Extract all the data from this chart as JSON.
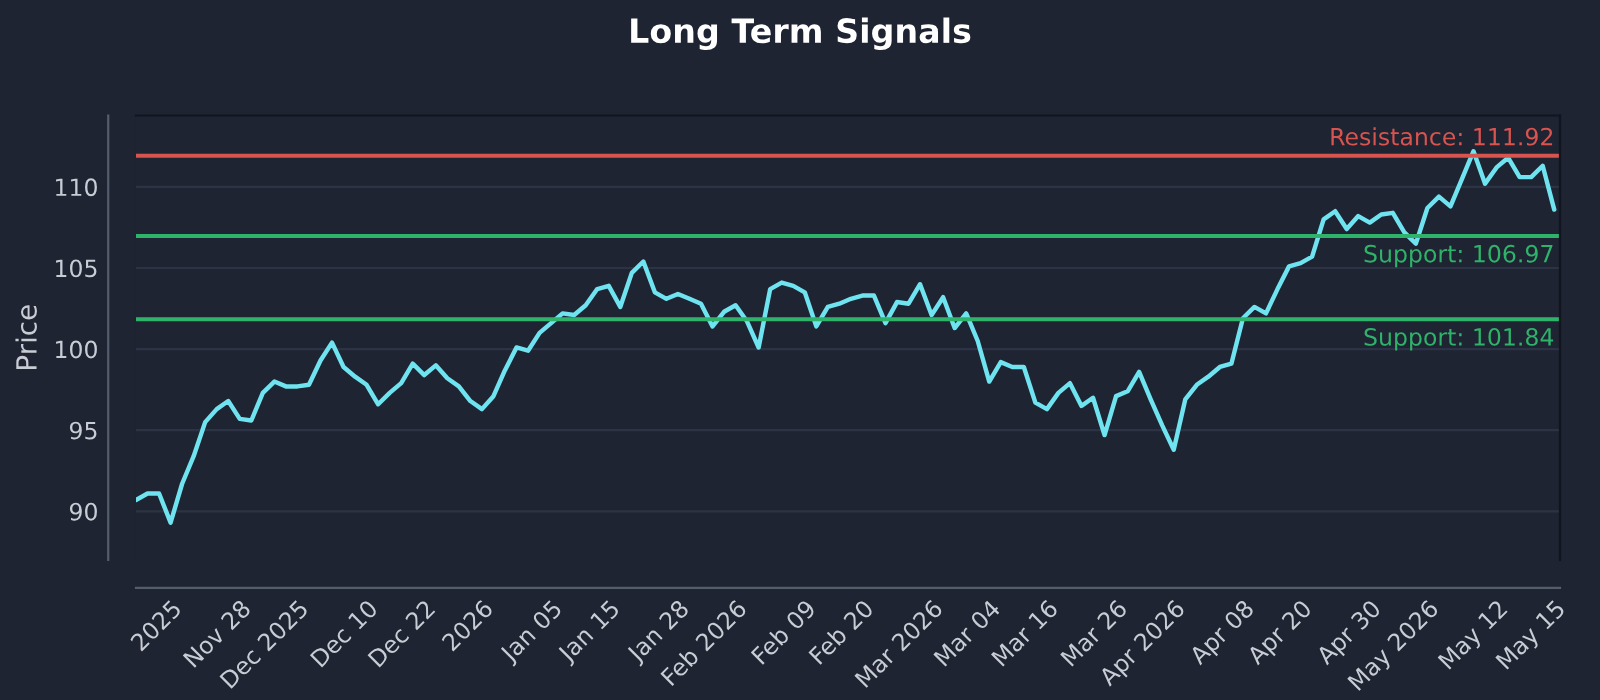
{
  "chart_data": {
    "type": "line",
    "title": "Long Term Signals",
    "ylabel": "Price",
    "categories": [
      null,
      null,
      null,
      "2025",
      null,
      null,
      null,
      null,
      null,
      "Nov 28",
      null,
      null,
      null,
      null,
      "Dec 2025",
      null,
      null,
      null,
      null,
      null,
      "Dec 10",
      null,
      null,
      null,
      null,
      "Dec 22",
      null,
      null,
      null,
      null,
      "2026",
      null,
      null,
      null,
      null,
      null,
      "Jan 05",
      null,
      null,
      null,
      null,
      "Jan 15",
      null,
      null,
      null,
      null,
      null,
      "Jan 28",
      null,
      null,
      null,
      null,
      "Feb 2026",
      null,
      null,
      null,
      null,
      null,
      "Feb 09",
      null,
      null,
      null,
      null,
      "Feb 20",
      null,
      null,
      null,
      null,
      null,
      "Mar 2026",
      null,
      null,
      null,
      null,
      "Mar 04",
      null,
      null,
      null,
      null,
      "Mar 16",
      null,
      null,
      null,
      null,
      null,
      "Mar 26",
      null,
      null,
      null,
      null,
      "Apr 2026",
      null,
      null,
      null,
      null,
      null,
      "Apr 08",
      null,
      null,
      null,
      null,
      "Apr 20",
      null,
      null,
      null,
      null,
      null,
      "Apr 30",
      null,
      null,
      null,
      null,
      "May 2026",
      null,
      null,
      null,
      null,
      null,
      "May 12",
      null,
      null,
      null,
      null,
      "May 15"
    ],
    "series": [
      {
        "color": "#6fe3ef",
        "values": [
          90.7,
          91.1,
          91.1,
          89.3,
          91.7,
          93.4,
          95.5,
          96.3,
          96.8,
          95.7,
          95.6,
          97.3,
          98.0,
          97.7,
          97.7,
          97.8,
          99.3,
          100.4,
          98.9,
          98.3,
          97.8,
          96.6,
          97.3,
          97.9,
          99.1,
          98.4,
          99.0,
          98.2,
          97.7,
          96.8,
          96.3,
          97.1,
          98.7,
          100.1,
          99.9,
          101.0,
          101.6,
          102.2,
          102.1,
          102.7,
          103.7,
          103.9,
          102.6,
          104.7,
          105.4,
          103.5,
          103.1,
          103.4,
          103.1,
          102.8,
          101.4,
          102.3,
          102.7,
          101.7,
          100.1,
          103.7,
          104.1,
          103.9,
          103.5,
          101.4,
          102.6,
          102.8,
          103.1,
          103.3,
          103.3,
          101.6,
          102.9,
          102.8,
          104.0,
          102.1,
          103.2,
          101.3,
          102.2,
          100.5,
          98.0,
          99.2,
          98.9,
          98.9,
          96.7,
          96.3,
          97.3,
          97.9,
          96.5,
          97.0,
          94.7,
          97.1,
          97.4,
          98.6,
          96.9,
          95.3,
          93.8,
          96.9,
          97.8,
          98.3,
          98.9,
          99.1,
          101.9,
          102.6,
          102.2,
          103.7,
          105.1,
          105.3,
          105.7,
          108.0,
          108.5,
          107.4,
          108.2,
          107.8,
          108.3,
          108.4,
          107.2,
          106.5,
          108.7,
          109.4,
          108.8,
          110.5,
          112.2,
          110.2,
          111.2,
          111.8,
          110.6,
          110.6,
          111.3,
          108.6
        ]
      }
    ],
    "ylim": [
      87,
      114.4
    ],
    "yticks": [
      90,
      95,
      100,
      105,
      110
    ],
    "grid": "y",
    "ref_lines": [
      {
        "axis": "y",
        "value": 111.92,
        "label": "Resistance: 111.92",
        "color": "#d9534f"
      },
      {
        "axis": "y",
        "value": 106.97,
        "label": "Support: 106.97",
        "color": "#2fb36b"
      },
      {
        "axis": "y",
        "value": 101.84,
        "label": "Support: 101.84",
        "color": "#2fb36b"
      }
    ]
  }
}
